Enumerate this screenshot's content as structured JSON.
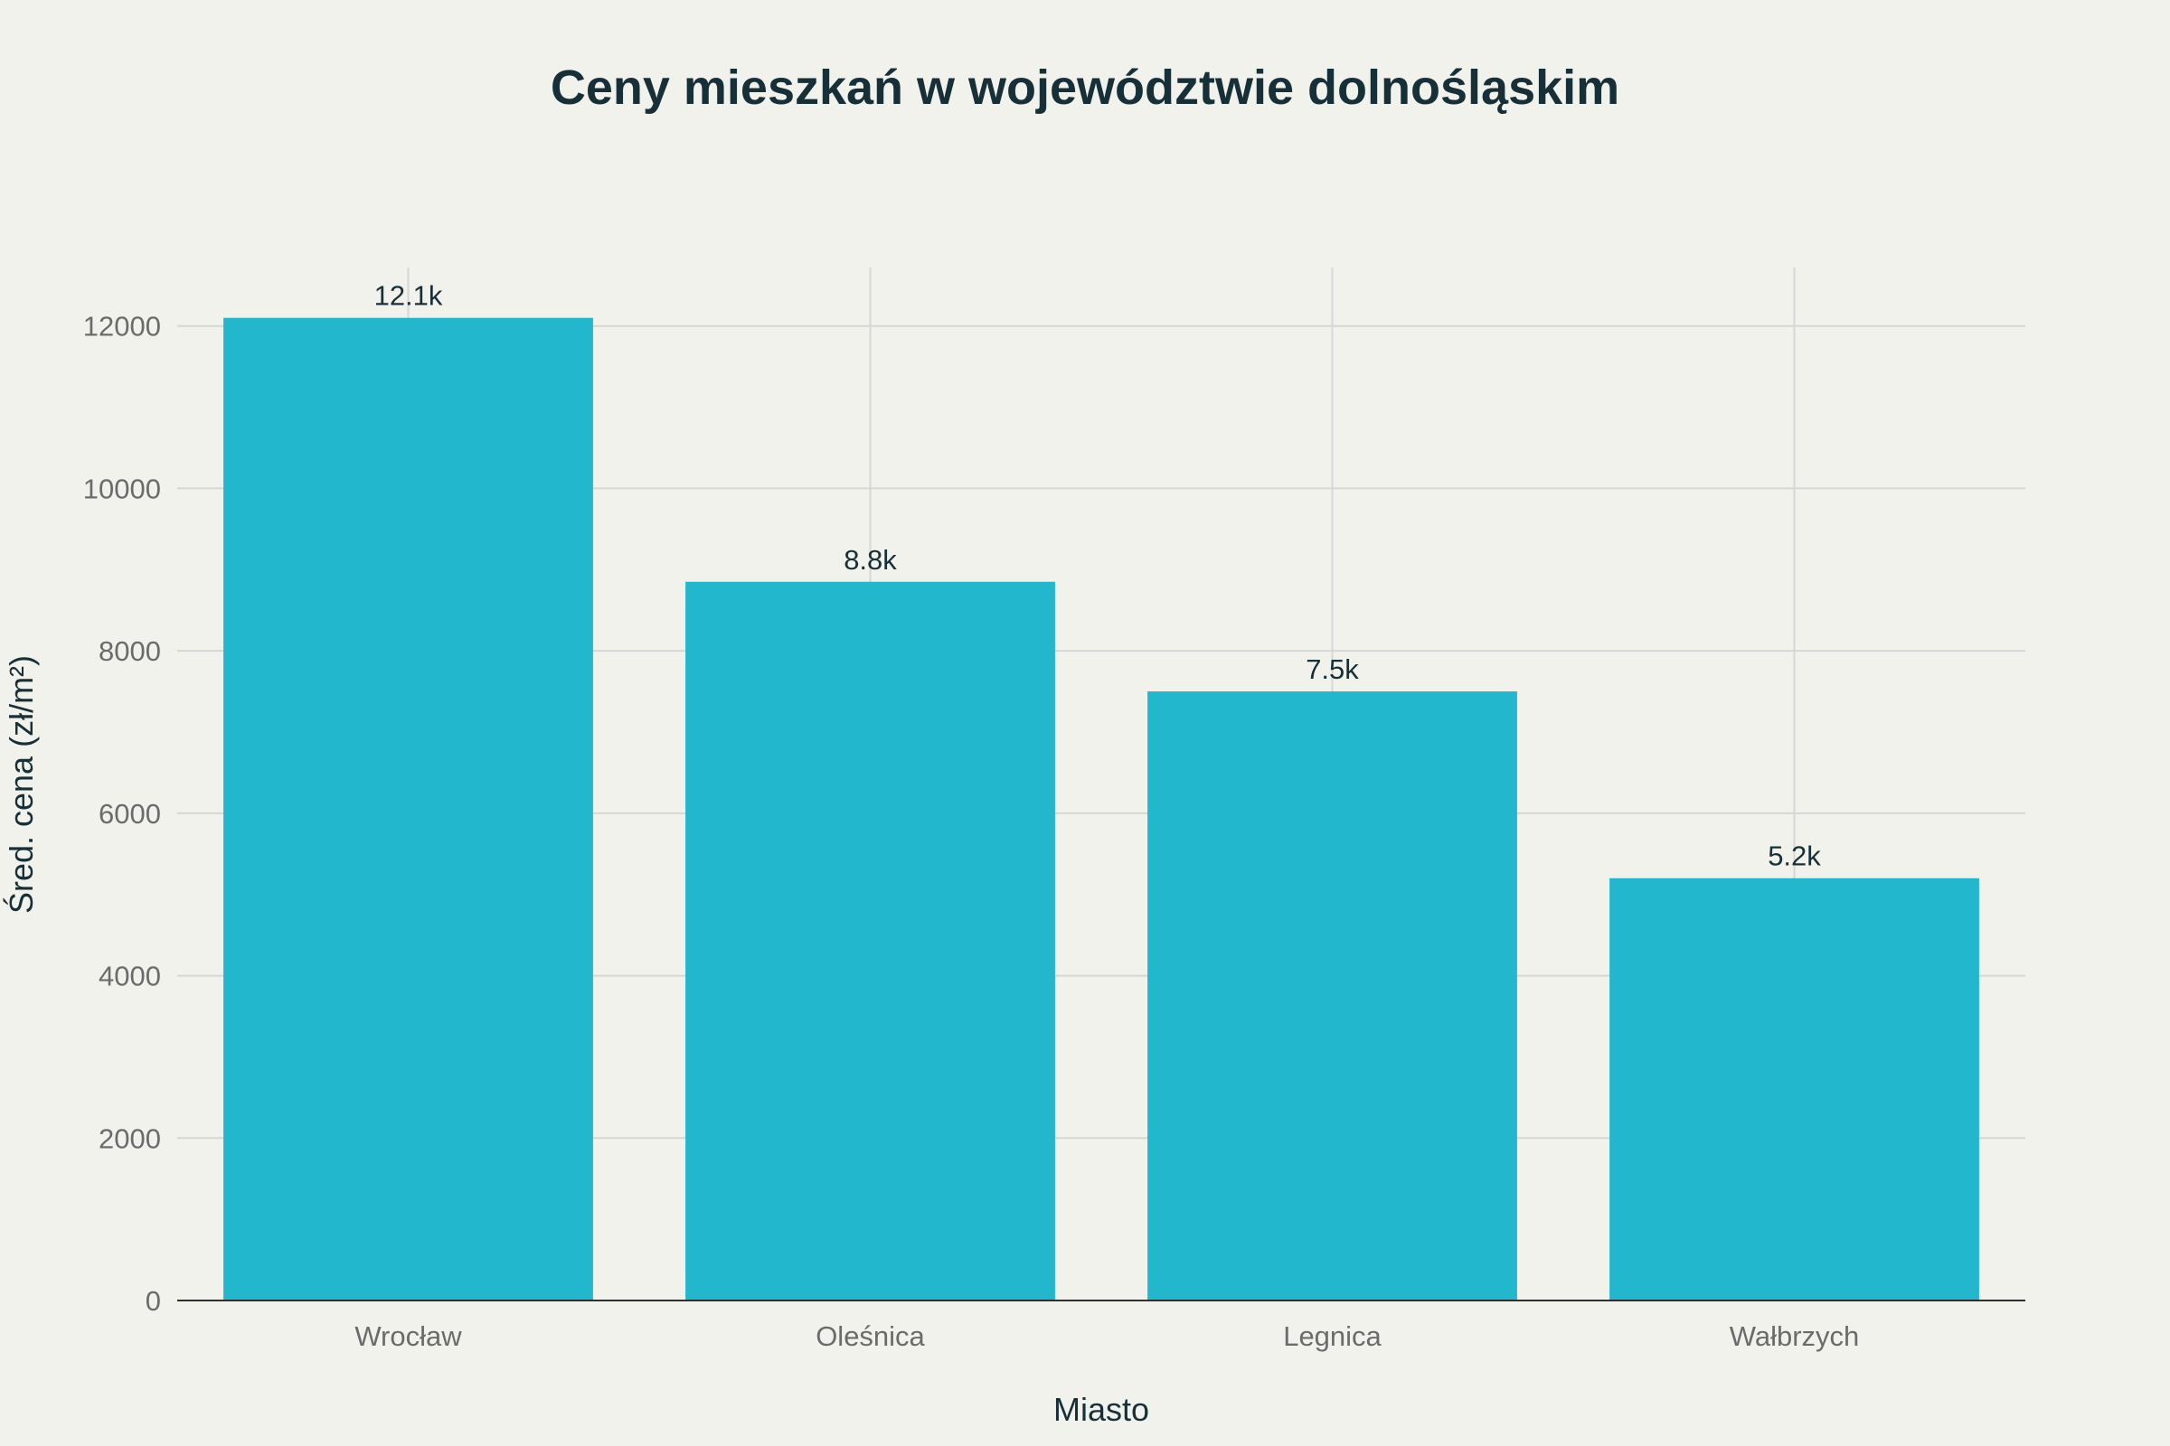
{
  "chart_data": {
    "type": "bar",
    "title": "Ceny mieszkań w województwie dolnośląskim",
    "xlabel": "Miasto",
    "ylabel": "Śred. cena (zł/m²)",
    "categories": [
      "Wrocław",
      "Oleśnica",
      "Legnica",
      "Wałbrzych"
    ],
    "values": [
      12100,
      8850,
      7500,
      5200
    ],
    "data_labels": [
      "12.1k",
      "8.8k",
      "7.5k",
      "5.2k"
    ],
    "yticks": [
      0,
      2000,
      4000,
      6000,
      8000,
      10000,
      12000
    ],
    "ylim": [
      0,
      12720
    ],
    "grid": true,
    "bar_color": "#22b7cc"
  }
}
